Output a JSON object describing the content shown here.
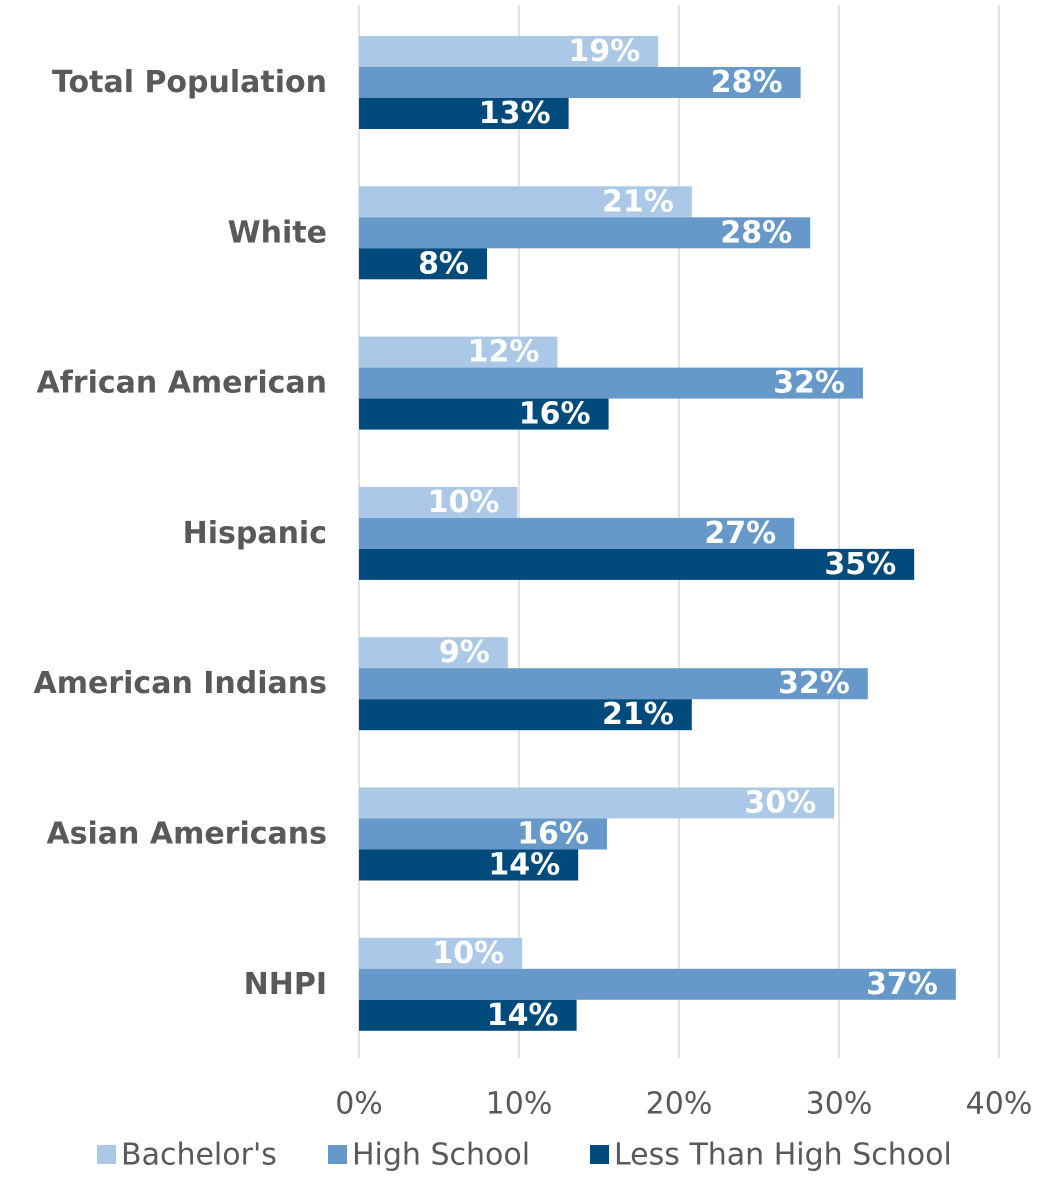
{
  "chart_data": {
    "type": "bar",
    "orientation": "horizontal",
    "title": "",
    "xlabel": "",
    "ylabel": "",
    "xlim": [
      0,
      40
    ],
    "x_ticks": [
      0,
      10,
      20,
      30,
      40
    ],
    "x_tick_labels": [
      "0%",
      "10%",
      "20%",
      "30%",
      "40%"
    ],
    "grid": "vertical",
    "legend_position": "bottom",
    "categories": [
      "Total Population",
      "White",
      "African American",
      "Hispanic",
      "American Indians",
      "Asian Americans",
      "NHPI"
    ],
    "series": [
      {
        "name": "Bachelor's",
        "color": "#abc8e6",
        "values": [
          18.7,
          20.8,
          12.4,
          9.9,
          9.3,
          29.7,
          10.2
        ],
        "labels": [
          "19%",
          "21%",
          "12%",
          "10%",
          "9%",
          "30%",
          "10%"
        ]
      },
      {
        "name": "High School",
        "color": "#6699c9",
        "values": [
          27.6,
          28.2,
          31.5,
          27.2,
          31.8,
          15.5,
          37.3
        ],
        "labels": [
          "28%",
          "28%",
          "32%",
          "27%",
          "32%",
          "16%",
          "37%"
        ]
      },
      {
        "name": "Less Than High School",
        "color": "#004a7c",
        "values": [
          13.1,
          8.0,
          15.6,
          34.7,
          20.8,
          13.7,
          13.6
        ],
        "labels": [
          "13%",
          "8%",
          "16%",
          "35%",
          "21%",
          "14%",
          "14%"
        ]
      }
    ]
  },
  "style": {
    "category_label_color": "#595959",
    "tick_label_color": "#595959",
    "grid_color": "#d9d9d9",
    "data_label_color": "#ffffff"
  }
}
